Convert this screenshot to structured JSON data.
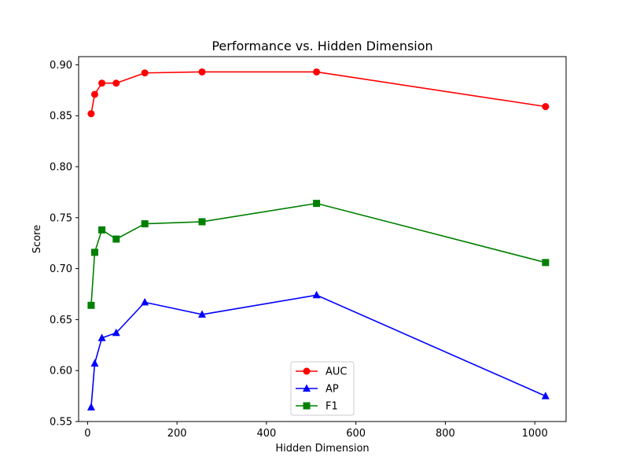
{
  "chart_data": {
    "type": "line",
    "title": "Performance vs. Hidden Dimension",
    "xlabel": "Hidden Dimension",
    "ylabel": "Score",
    "xlim": [
      -20,
      1070
    ],
    "ylim": [
      0.55,
      0.908
    ],
    "xticks": [
      0,
      200,
      400,
      600,
      800,
      1000
    ],
    "yticks": [
      0.55,
      0.6,
      0.65,
      0.7,
      0.75,
      0.8,
      0.85,
      0.9
    ],
    "grid": false,
    "legend_position": "lower center",
    "x": [
      8,
      16,
      32,
      64,
      128,
      256,
      512,
      1024
    ],
    "series": [
      {
        "name": "AUC",
        "color": "#ff0000",
        "marker": "circle",
        "values": [
          0.852,
          0.871,
          0.882,
          0.882,
          0.892,
          0.893,
          0.893,
          0.859
        ]
      },
      {
        "name": "AP",
        "color": "#0000ff",
        "marker": "triangle",
        "values": [
          0.564,
          0.607,
          0.632,
          0.637,
          0.667,
          0.655,
          0.674,
          0.575
        ]
      },
      {
        "name": "F1",
        "color": "#008000",
        "marker": "square",
        "values": [
          0.664,
          0.716,
          0.738,
          0.729,
          0.744,
          0.746,
          0.764,
          0.706
        ]
      }
    ]
  }
}
